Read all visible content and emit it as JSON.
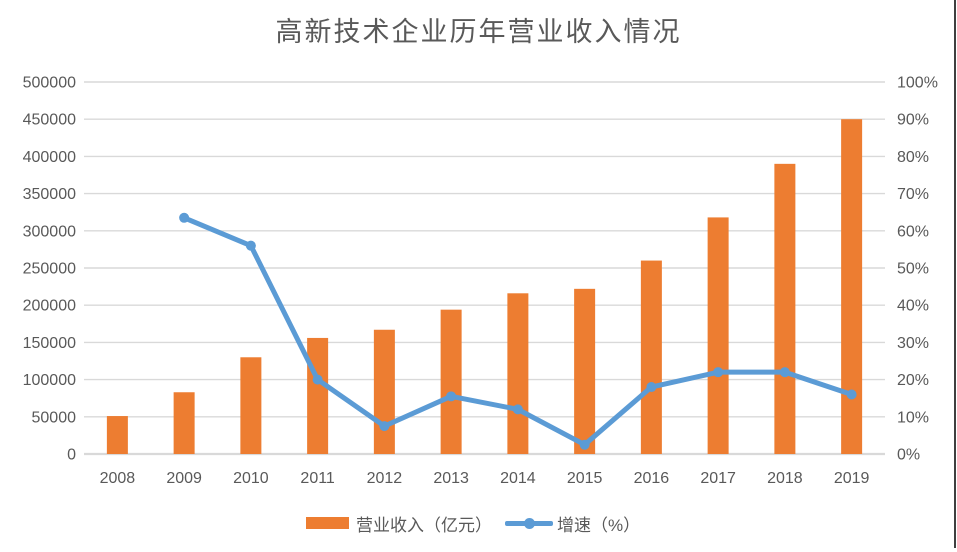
{
  "title": "高新技术企业历年营业收入情况",
  "legend": {
    "revenue_label": "营业收入（亿元）",
    "growth_label": "增速（%）"
  },
  "colors": {
    "bar": "#ED7D31",
    "line": "#5B9BD5",
    "grid": "#D9D9D9",
    "text": "#595959",
    "border": "#3F3F3F",
    "background": "#FFFFFF"
  },
  "chart_data": {
    "type": "bar",
    "subtype": "bar-line-combo",
    "title": "高新技术企业历年营业收入情况",
    "categories": [
      "2008",
      "2009",
      "2010",
      "2011",
      "2012",
      "2013",
      "2014",
      "2015",
      "2016",
      "2017",
      "2018",
      "2019"
    ],
    "series": [
      {
        "name": "营业收入（亿元）",
        "type": "bar",
        "axis": "left",
        "color": "#ED7D31",
        "values": [
          51000,
          83000,
          130000,
          156000,
          167000,
          194000,
          216000,
          222000,
          260000,
          318000,
          390000,
          450000
        ]
      },
      {
        "name": "增速（%）",
        "type": "line",
        "axis": "right",
        "color": "#5B9BD5",
        "values": [
          null,
          63.5,
          56,
          20,
          7.5,
          15.5,
          12,
          2.5,
          18,
          22,
          22,
          16
        ]
      }
    ],
    "left_axis": {
      "min": 0,
      "max": 500000,
      "step": 50000,
      "ticks": [
        "0",
        "50000",
        "100000",
        "150000",
        "200000",
        "250000",
        "300000",
        "350000",
        "400000",
        "450000",
        "500000"
      ]
    },
    "right_axis": {
      "min": 0,
      "max": 100,
      "step": 10,
      "ticks": [
        "0%",
        "10%",
        "20%",
        "30%",
        "40%",
        "50%",
        "60%",
        "70%",
        "80%",
        "90%",
        "100%"
      ]
    },
    "grid": true,
    "legend_position": "bottom",
    "xlabel": "",
    "ylabel": ""
  }
}
